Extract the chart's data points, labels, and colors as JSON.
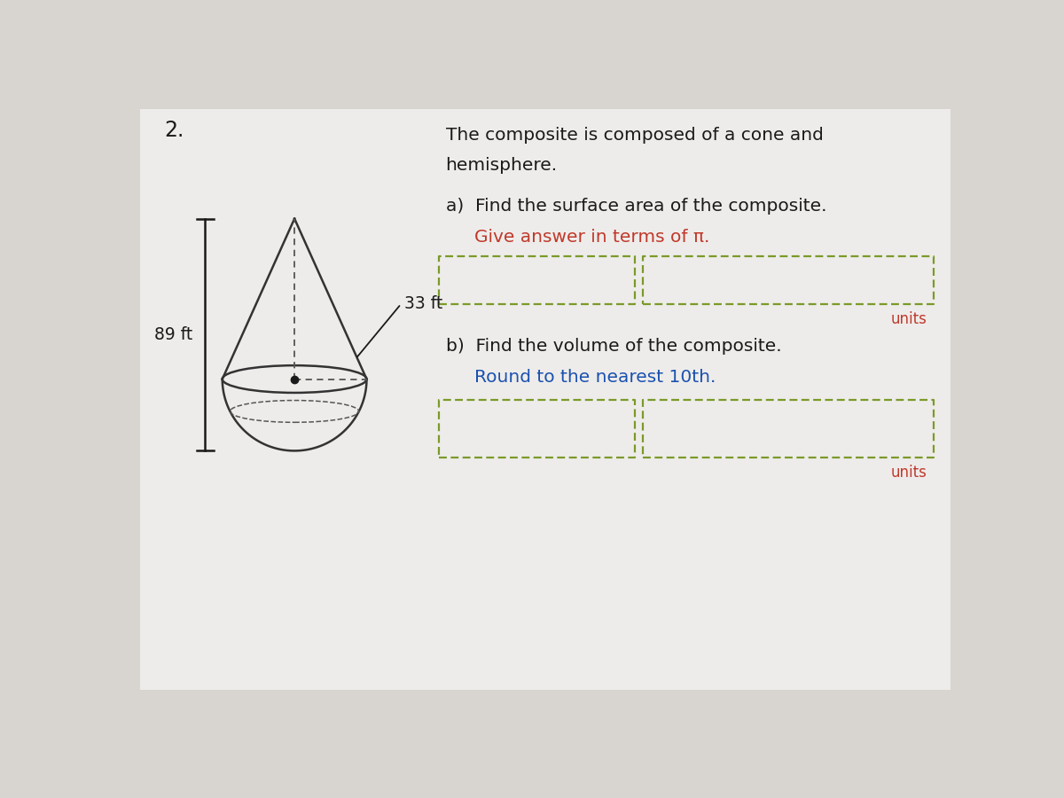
{
  "background_color": "#d8d4d0",
  "paper_color": "#eeecea",
  "problem_number": "2.",
  "description_line1": "The composite is composed of a cone and",
  "description_line2": "hemisphere.",
  "part_a_label": "a)  Find the surface area of the composite.",
  "part_a_hint": "Give answer in terms of π.",
  "part_b_label": "b)  Find the volume of the composite.",
  "part_b_hint": "Round to the nearest 10th.",
  "units_text": "units",
  "measure_89": "89 ft",
  "measure_33": "33 ft",
  "text_color": "#1a1a1a",
  "red_color": "#c0392b",
  "blue_color": "#1a52b0",
  "box_border_color": "#7a9a2a",
  "cone_color": "#333333",
  "dashed_color": "#555555"
}
